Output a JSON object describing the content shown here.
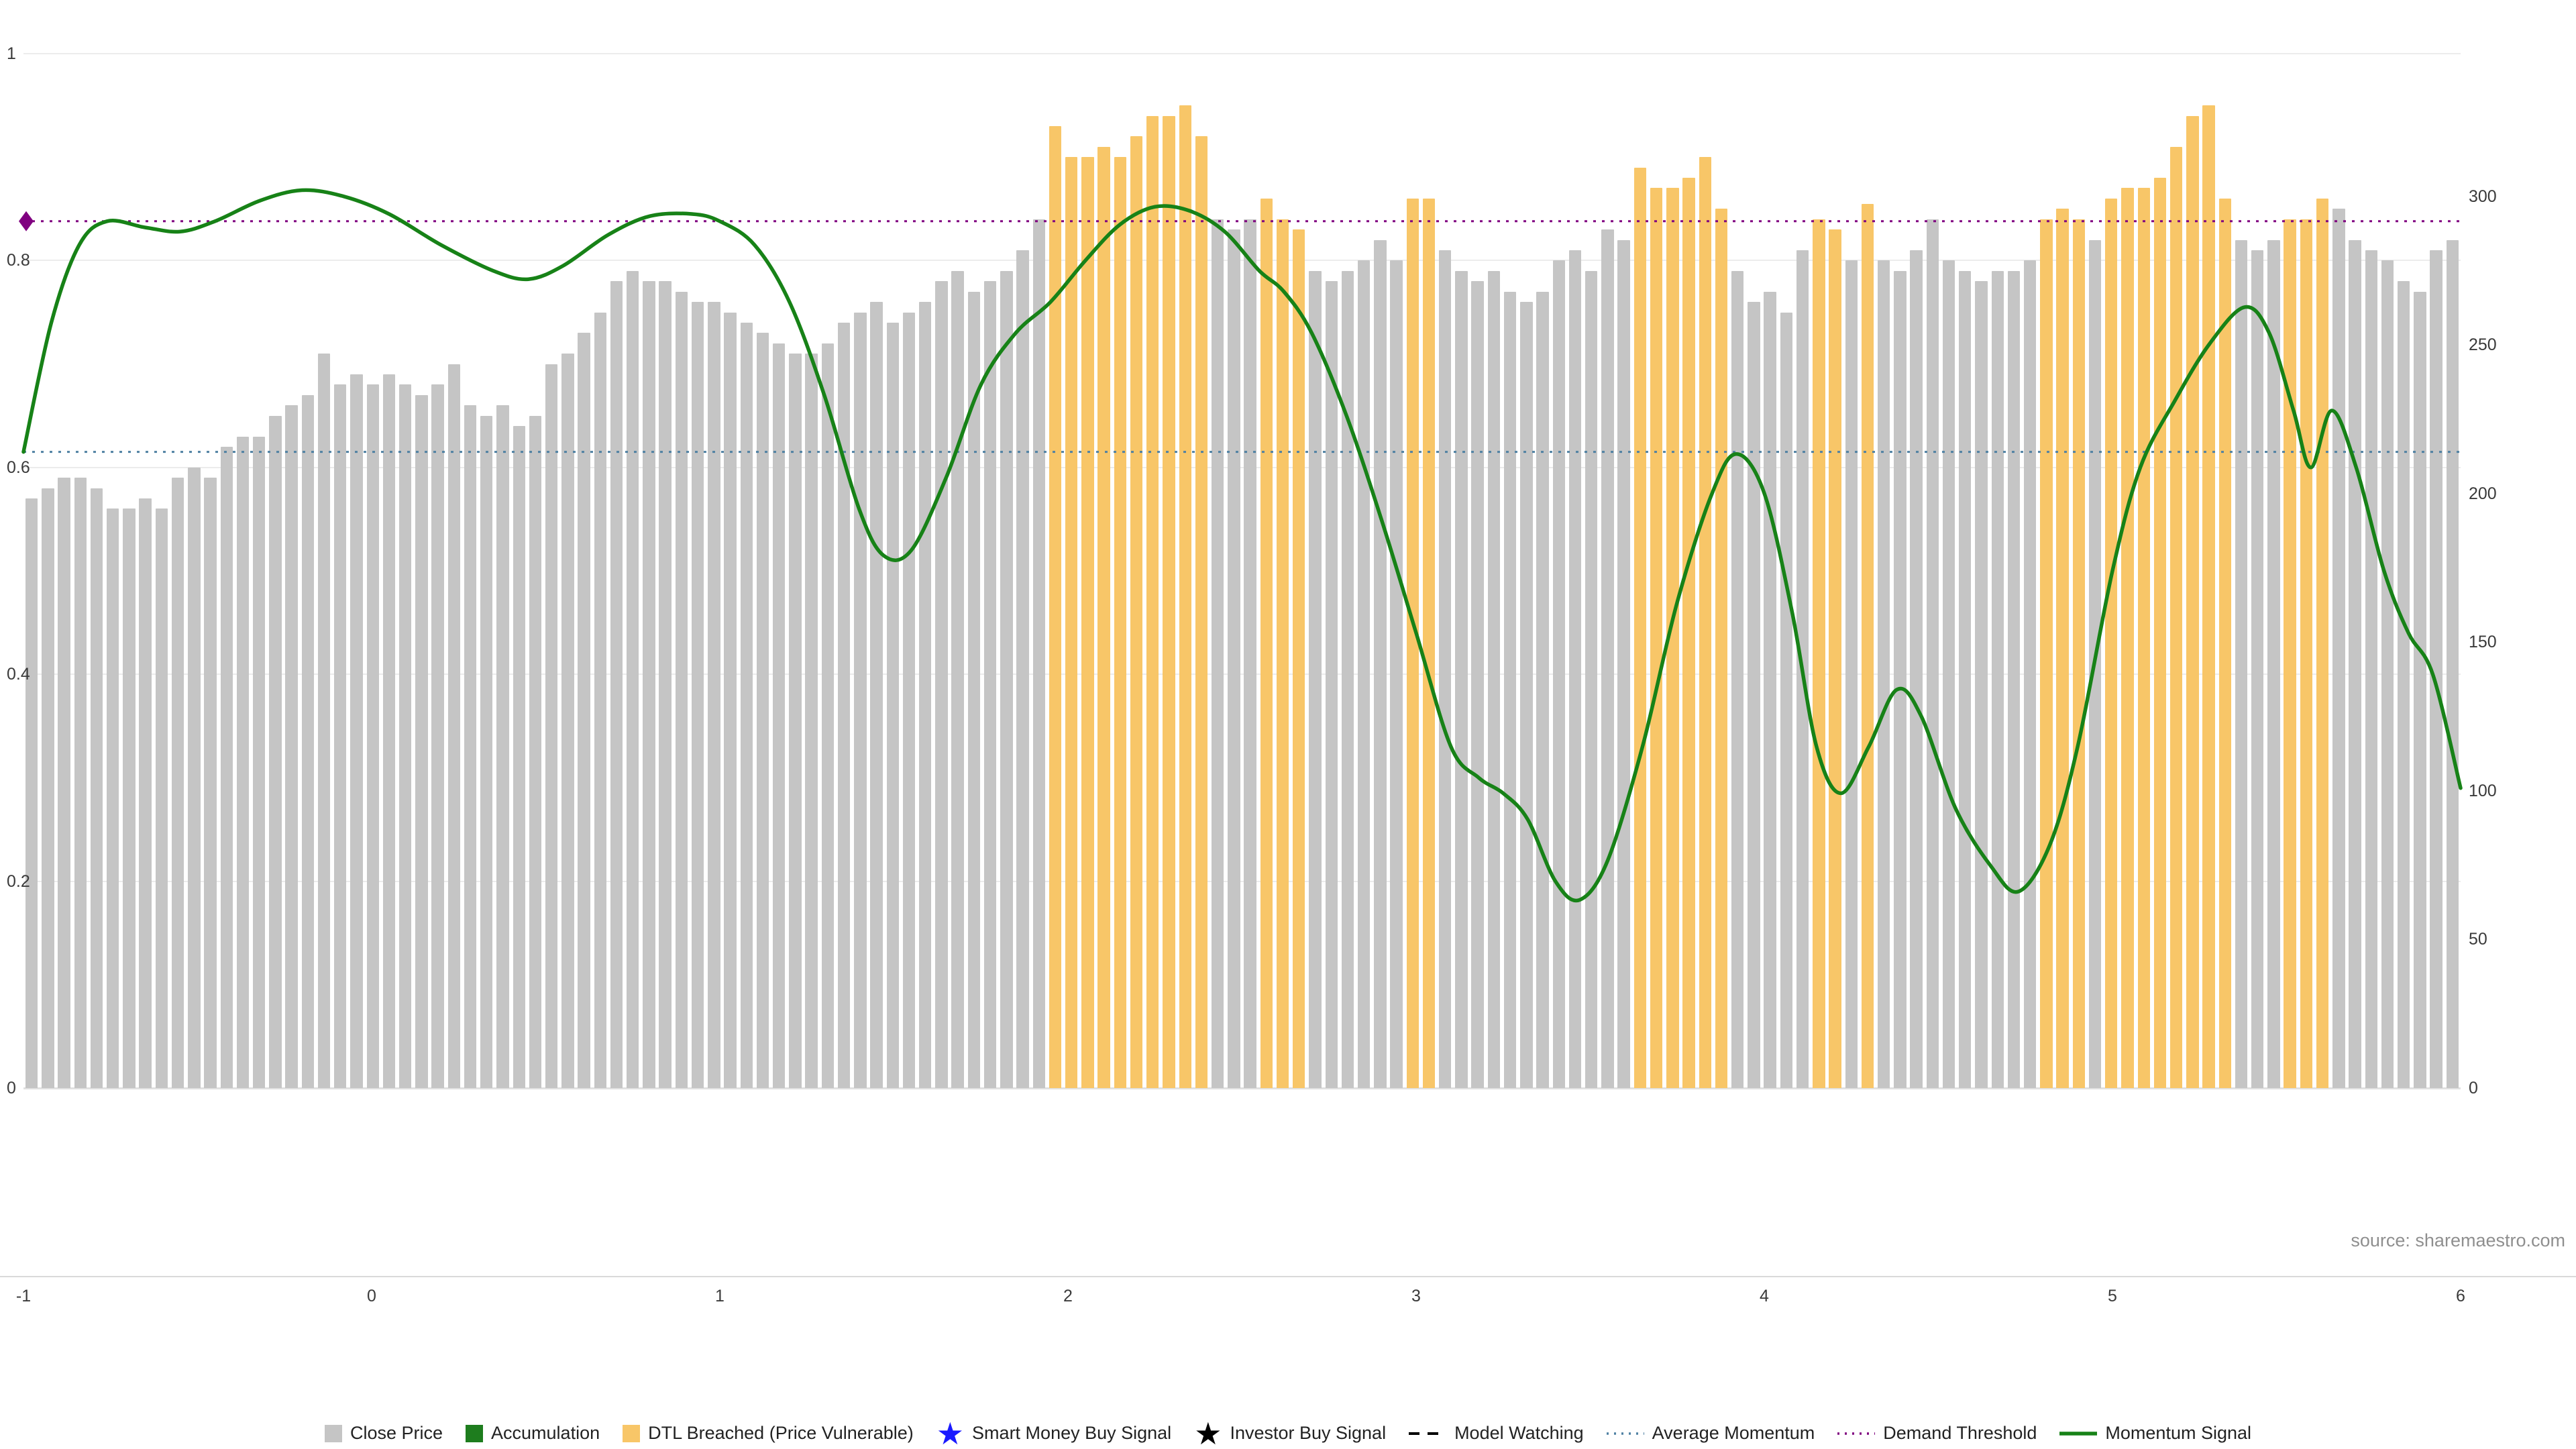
{
  "page": {
    "source_note": "source: sharemaestro.com"
  },
  "chart_data": {
    "type": "bar",
    "subtype": "mixed-bar-line",
    "title": "",
    "x_axis": {
      "min": -1,
      "max": 6,
      "ticks": [
        "-1",
        "0",
        "1",
        "2",
        "3",
        "4",
        "5",
        "6"
      ]
    },
    "y_axis_left": {
      "min": 0,
      "max": 1,
      "ticks": [
        "0",
        "0.2",
        "0.4",
        "0.6",
        "0.8",
        "1"
      ]
    },
    "y_axis_right": {
      "min": 0,
      "max": 300,
      "ticks": [
        "0",
        "50",
        "100",
        "150",
        "200",
        "250",
        "300"
      ]
    },
    "grid": true,
    "legend_position": "bottom-center",
    "bars": {
      "name": "Close Price",
      "breached_name": "DTL Breached (Price Vulnerable)",
      "values": [
        0.57,
        0.58,
        0.59,
        0.59,
        0.58,
        0.56,
        0.56,
        0.57,
        0.56,
        0.59,
        0.6,
        0.59,
        0.62,
        0.63,
        0.63,
        0.65,
        0.66,
        0.67,
        0.71,
        0.68,
        0.69,
        0.68,
        0.69,
        0.68,
        0.67,
        0.68,
        0.7,
        0.66,
        0.65,
        0.66,
        0.64,
        0.65,
        0.7,
        0.71,
        0.73,
        0.75,
        0.78,
        0.79,
        0.78,
        0.78,
        0.77,
        0.76,
        0.76,
        0.75,
        0.74,
        0.73,
        0.72,
        0.71,
        0.71,
        0.72,
        0.74,
        0.75,
        0.76,
        0.74,
        0.75,
        0.76,
        0.78,
        0.79,
        0.77,
        0.78,
        0.79,
        0.81,
        0.84,
        0.93,
        0.9,
        0.9,
        0.91,
        0.9,
        0.92,
        0.94,
        0.94,
        0.95,
        0.92,
        0.84,
        0.83,
        0.84,
        0.86,
        0.84,
        0.83,
        0.79,
        0.78,
        0.79,
        0.8,
        0.82,
        0.8,
        0.86,
        0.86,
        0.81,
        0.79,
        0.78,
        0.79,
        0.77,
        0.76,
        0.77,
        0.8,
        0.81,
        0.79,
        0.83,
        0.82,
        0.89,
        0.87,
        0.87,
        0.88,
        0.9,
        0.85,
        0.79,
        0.76,
        0.77,
        0.75,
        0.81,
        0.84,
        0.83,
        0.8,
        0.855,
        0.8,
        0.79,
        0.81,
        0.84,
        0.8,
        0.79,
        0.78,
        0.79,
        0.79,
        0.8,
        0.84,
        0.85,
        0.84,
        0.82,
        0.86,
        0.87,
        0.87,
        0.88,
        0.91,
        0.94,
        0.95,
        0.86,
        0.82,
        0.81,
        0.82,
        0.84,
        0.84,
        0.86,
        0.85,
        0.82,
        0.81,
        0.8,
        0.78,
        0.77,
        0.81,
        0.82
      ],
      "breached_indices": [
        63,
        64,
        65,
        66,
        67,
        68,
        69,
        70,
        71,
        72,
        76,
        77,
        78,
        85,
        86,
        99,
        100,
        101,
        102,
        103,
        104,
        110,
        111,
        113,
        124,
        125,
        126,
        128,
        129,
        130,
        131,
        132,
        133,
        134,
        135,
        139,
        140,
        141
      ]
    },
    "momentum_signal": {
      "name": "Momentum Signal",
      "points": [
        [
          -1.0,
          0.615
        ],
        [
          -0.92,
          0.74
        ],
        [
          -0.84,
          0.815
        ],
        [
          -0.76,
          0.838
        ],
        [
          -0.65,
          0.832
        ],
        [
          -0.55,
          0.828
        ],
        [
          -0.45,
          0.838
        ],
        [
          -0.32,
          0.858
        ],
        [
          -0.2,
          0.868
        ],
        [
          -0.08,
          0.862
        ],
        [
          0.05,
          0.845
        ],
        [
          0.2,
          0.815
        ],
        [
          0.35,
          0.79
        ],
        [
          0.45,
          0.782
        ],
        [
          0.55,
          0.795
        ],
        [
          0.68,
          0.825
        ],
        [
          0.8,
          0.843
        ],
        [
          0.92,
          0.845
        ],
        [
          1.0,
          0.838
        ],
        [
          1.1,
          0.815
        ],
        [
          1.2,
          0.76
        ],
        [
          1.3,
          0.67
        ],
        [
          1.4,
          0.56
        ],
        [
          1.47,
          0.515
        ],
        [
          1.55,
          0.52
        ],
        [
          1.65,
          0.59
        ],
        [
          1.75,
          0.68
        ],
        [
          1.85,
          0.73
        ],
        [
          1.95,
          0.76
        ],
        [
          2.05,
          0.8
        ],
        [
          2.15,
          0.835
        ],
        [
          2.25,
          0.852
        ],
        [
          2.35,
          0.848
        ],
        [
          2.45,
          0.828
        ],
        [
          2.55,
          0.79
        ],
        [
          2.62,
          0.77
        ],
        [
          2.7,
          0.73
        ],
        [
          2.8,
          0.65
        ],
        [
          2.9,
          0.55
        ],
        [
          3.0,
          0.44
        ],
        [
          3.1,
          0.33
        ],
        [
          3.18,
          0.3
        ],
        [
          3.25,
          0.285
        ],
        [
          3.32,
          0.26
        ],
        [
          3.4,
          0.2
        ],
        [
          3.47,
          0.182
        ],
        [
          3.55,
          0.22
        ],
        [
          3.65,
          0.33
        ],
        [
          3.75,
          0.47
        ],
        [
          3.85,
          0.575
        ],
        [
          3.92,
          0.613
        ],
        [
          4.0,
          0.575
        ],
        [
          4.08,
          0.46
        ],
        [
          4.15,
          0.33
        ],
        [
          4.22,
          0.285
        ],
        [
          4.3,
          0.33
        ],
        [
          4.38,
          0.385
        ],
        [
          4.45,
          0.36
        ],
        [
          4.55,
          0.27
        ],
        [
          4.65,
          0.215
        ],
        [
          4.73,
          0.19
        ],
        [
          4.82,
          0.235
        ],
        [
          4.9,
          0.33
        ],
        [
          5.0,
          0.5
        ],
        [
          5.08,
          0.6
        ],
        [
          5.18,
          0.665
        ],
        [
          5.28,
          0.72
        ],
        [
          5.38,
          0.755
        ],
        [
          5.45,
          0.73
        ],
        [
          5.52,
          0.655
        ],
        [
          5.57,
          0.6
        ],
        [
          5.63,
          0.655
        ],
        [
          5.7,
          0.6
        ],
        [
          5.78,
          0.5
        ],
        [
          5.85,
          0.44
        ],
        [
          5.92,
          0.4
        ],
        [
          6.0,
          0.29
        ]
      ]
    },
    "average_momentum": {
      "name": "Average Momentum",
      "value": 0.615
    },
    "demand_threshold": {
      "name": "Demand Threshold",
      "value": 0.838,
      "marker": {
        "shape": "diamond",
        "x": -1,
        "y": 0.838
      }
    },
    "colors": {
      "close_price": "#c5c5c5",
      "accumulation": "#1e7d1e",
      "dtl_breached": "#f8c668",
      "momentum_signal": "#178217",
      "average_momentum": "#4f81a3",
      "demand_threshold": "#800080",
      "smart_money_star": "#1a1aff",
      "investor_star": "#000000",
      "model_watching": "#000000"
    },
    "legend": [
      {
        "label": "Close Price",
        "swatch": "square",
        "color_key": "close_price"
      },
      {
        "label": "Accumulation",
        "swatch": "square",
        "color_key": "accumulation"
      },
      {
        "label": "DTL Breached (Price Vulnerable)",
        "swatch": "square",
        "color_key": "dtl_breached"
      },
      {
        "label": "Smart Money Buy Signal",
        "swatch": "star",
        "color_key": "smart_money_star"
      },
      {
        "label": "Investor Buy Signal",
        "swatch": "star",
        "color_key": "investor_star"
      },
      {
        "label": "Model Watching",
        "swatch": "dash",
        "color_key": "model_watching"
      },
      {
        "label": "Average Momentum",
        "swatch": "dotted",
        "color_key": "average_momentum"
      },
      {
        "label": "Demand Threshold",
        "swatch": "dotted",
        "color_key": "demand_threshold"
      },
      {
        "label": "Momentum Signal",
        "swatch": "line",
        "color_key": "momentum_signal"
      }
    ]
  }
}
